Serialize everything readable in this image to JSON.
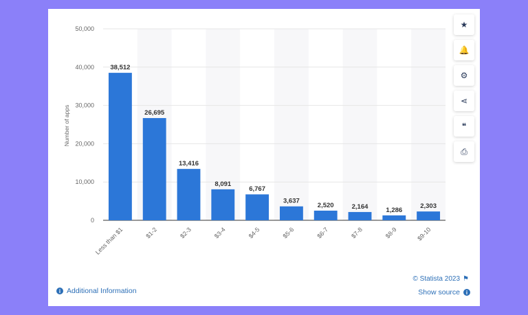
{
  "chart_data": {
    "type": "bar",
    "categories": [
      "Less than $1",
      "$1-2",
      "$2-3",
      "$3-4",
      "$4-5",
      "$5-6",
      "$6-7",
      "$7-8",
      "$8-9",
      "$9-10"
    ],
    "values": [
      38512,
      26695,
      13416,
      8091,
      6767,
      3637,
      2520,
      2164,
      1286,
      2303
    ],
    "value_labels": [
      "38,512",
      "26,695",
      "13,416",
      "8,091",
      "6,767",
      "3,637",
      "2,520",
      "2,164",
      "1,286",
      "2,303"
    ],
    "ylabel": "Number of apps",
    "ylim": [
      0,
      50000
    ],
    "yticks": [
      0,
      10000,
      20000,
      30000,
      40000,
      50000
    ],
    "ytick_labels": [
      "0",
      "10,000",
      "20,000",
      "30,000",
      "40,000",
      "50,000"
    ],
    "bar_color": "#2c77d8",
    "grid": true
  },
  "toolbar": {
    "buttons": [
      {
        "name": "star-icon",
        "glyph": "★"
      },
      {
        "name": "bell-icon",
        "glyph": "🔔"
      },
      {
        "name": "gear-icon",
        "glyph": "⚙"
      },
      {
        "name": "share-icon",
        "glyph": "⋖"
      },
      {
        "name": "quote-icon",
        "glyph": "❝"
      },
      {
        "name": "print-icon",
        "glyph": "⎙"
      }
    ]
  },
  "footer": {
    "additional_info": "Additional Information",
    "copyright": "© Statista 2023",
    "show_source": "Show source"
  },
  "colors": {
    "background": "#8b80f9",
    "link": "#2c6fb7"
  }
}
